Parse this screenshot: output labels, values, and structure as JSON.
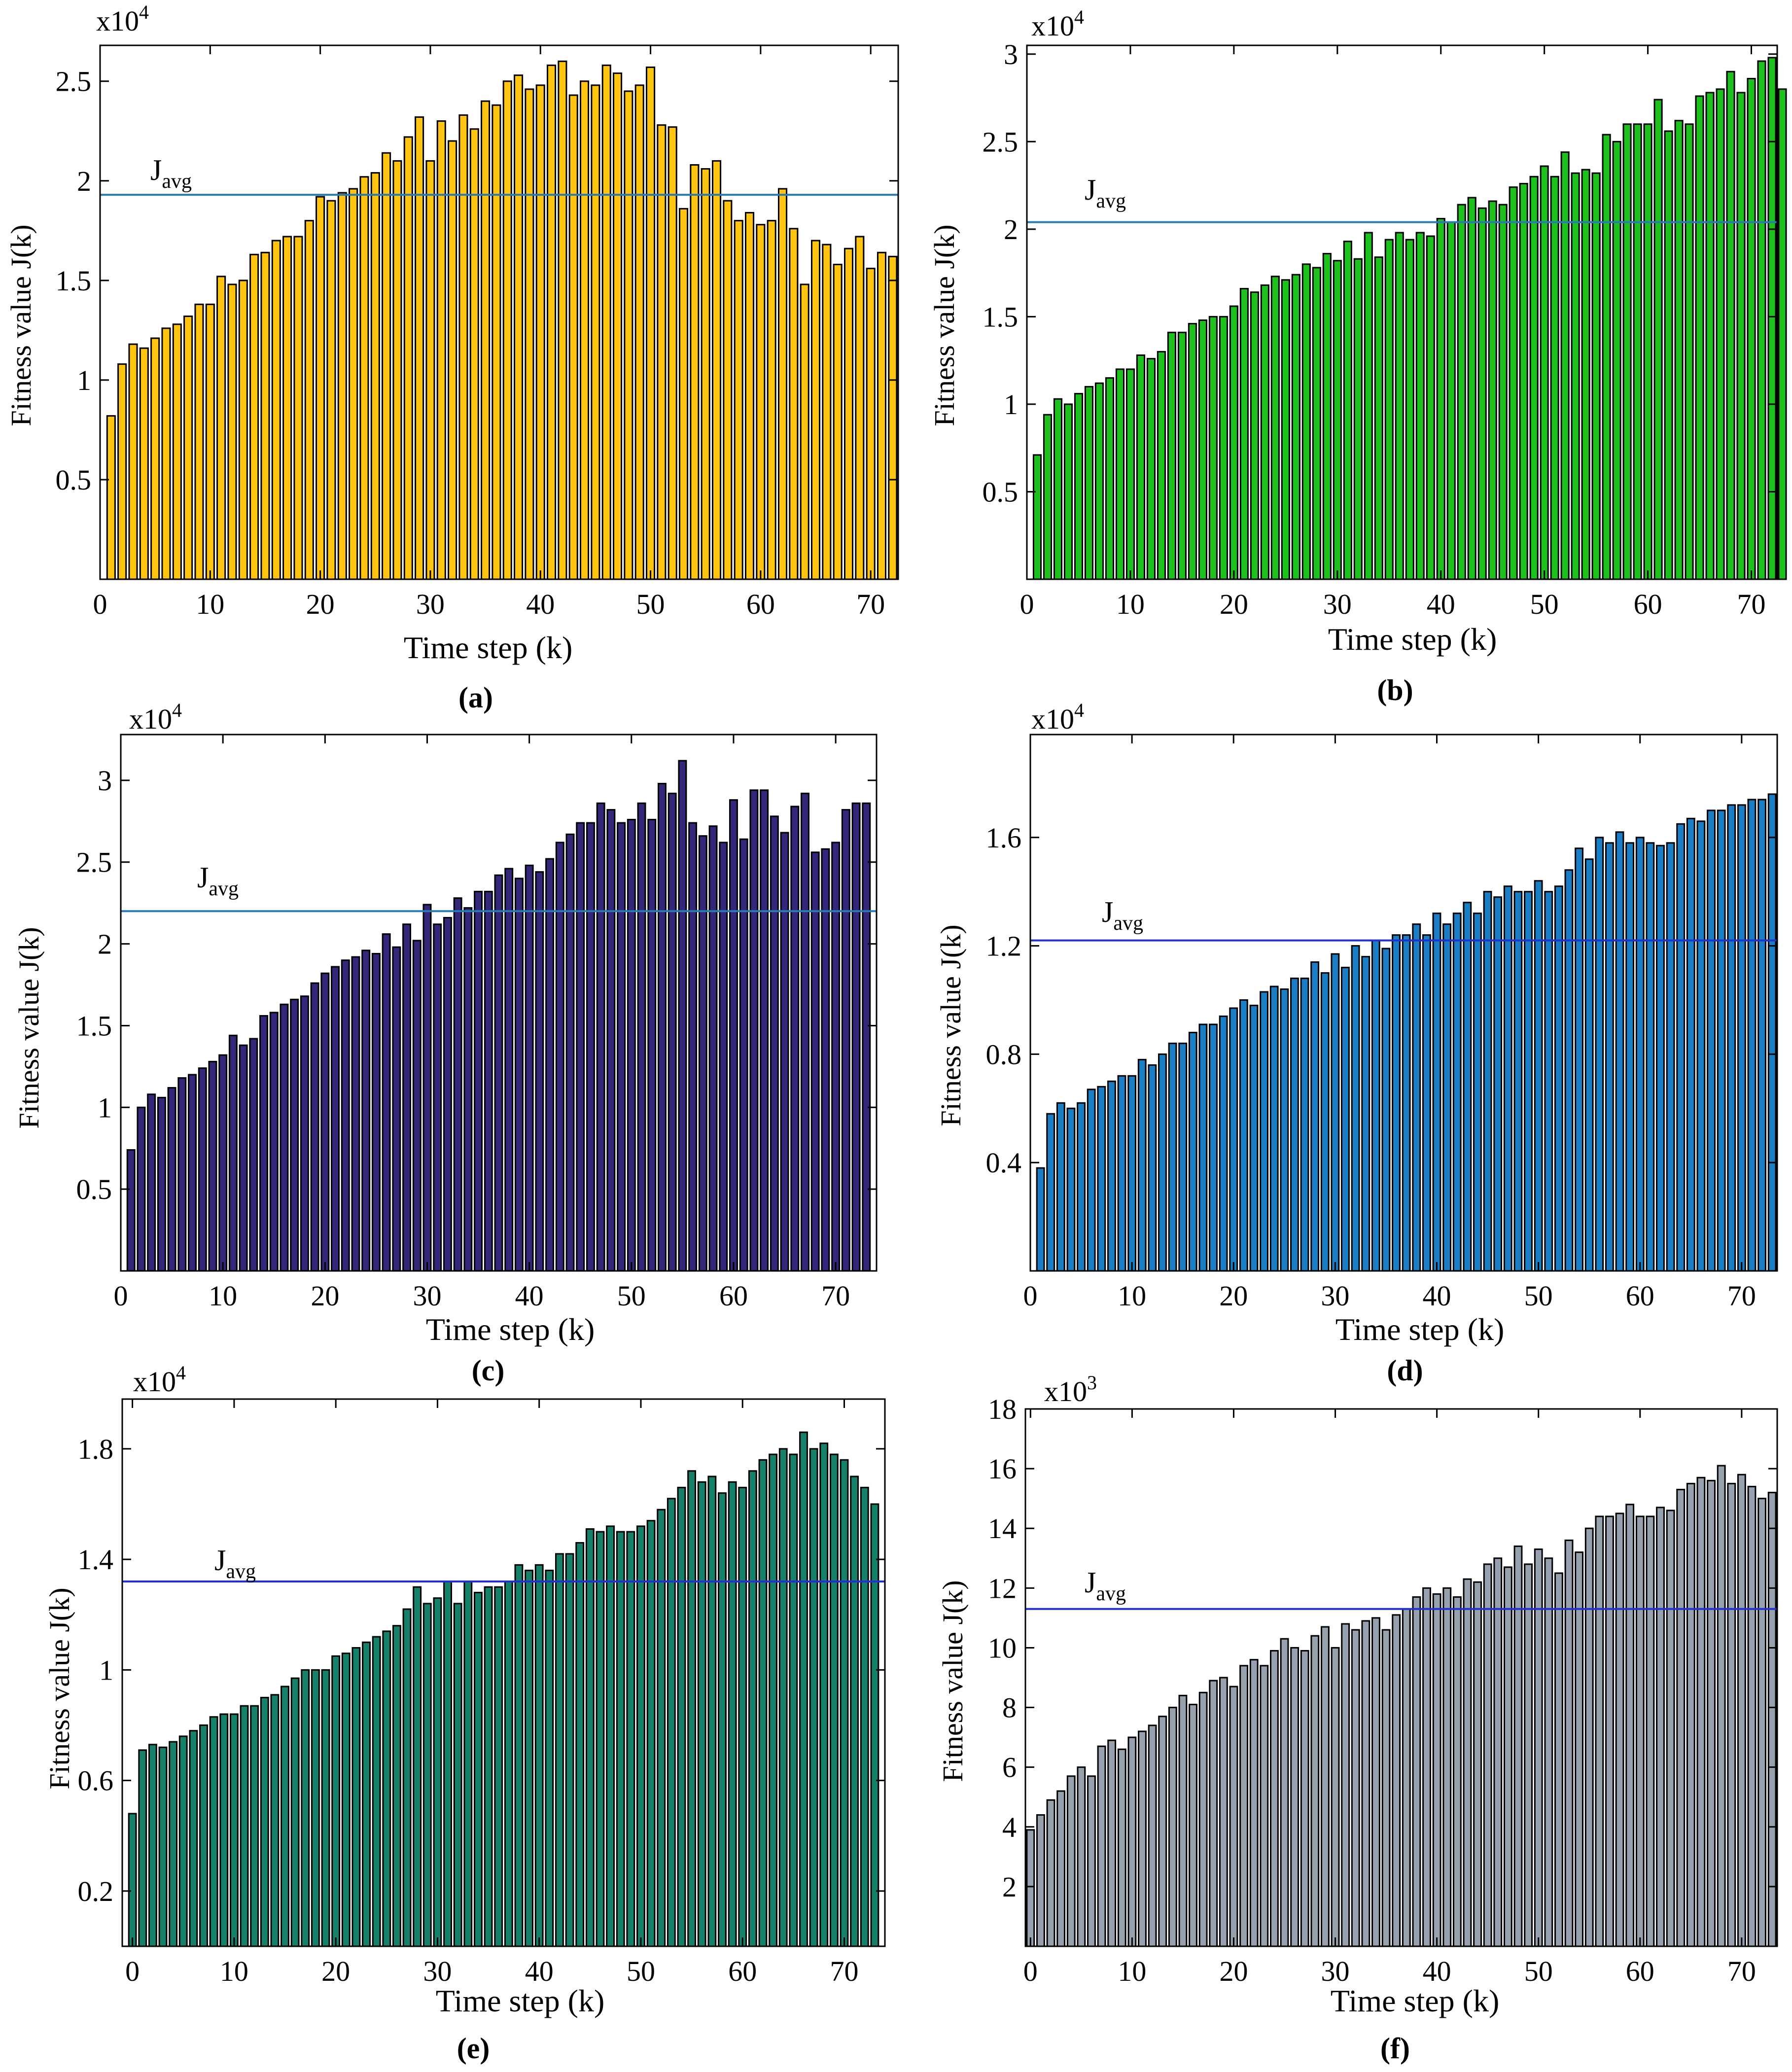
{
  "chart_data": [
    {
      "panel": "a",
      "type": "bar",
      "panel_label": "(a)",
      "title": "",
      "xlabel": "Time step (k)",
      "ylabel": "Fitness value J(k)",
      "multiplier_base": "x10",
      "multiplier_exp": "4",
      "xlim": [
        0,
        72.5
      ],
      "ylim": [
        0,
        2.68
      ],
      "xticks": [
        0,
        10,
        20,
        30,
        40,
        50,
        60,
        70
      ],
      "yticks": [
        0.5,
        1,
        1.5,
        2,
        2.5
      ],
      "ytick_labels": [
        "0.5",
        "1",
        "1.5",
        "2",
        "2.5"
      ],
      "javg": 1.93,
      "javg_label": "J",
      "javg_sub": "avg",
      "bar_color": "#ffc312",
      "line_color": "#2a7ab5",
      "x": [
        1,
        2,
        3,
        4,
        5,
        6,
        7,
        8,
        9,
        10,
        11,
        12,
        13,
        14,
        15,
        16,
        17,
        18,
        19,
        20,
        21,
        22,
        23,
        24,
        25,
        26,
        27,
        28,
        29,
        30,
        31,
        32,
        33,
        34,
        35,
        36,
        37,
        38,
        39,
        40,
        41,
        42,
        43,
        44,
        45,
        46,
        47,
        48,
        49,
        50,
        51,
        52,
        53,
        54,
        55,
        56,
        57,
        58,
        59,
        60,
        61,
        62,
        63,
        64,
        65,
        66,
        67,
        68,
        69,
        70,
        71,
        72
      ],
      "values": [
        0.82,
        1.08,
        1.18,
        1.16,
        1.21,
        1.26,
        1.28,
        1.32,
        1.38,
        1.38,
        1.52,
        1.48,
        1.5,
        1.63,
        1.64,
        1.7,
        1.72,
        1.72,
        1.8,
        1.92,
        1.9,
        1.94,
        1.96,
        2.02,
        2.04,
        2.14,
        2.1,
        2.22,
        2.32,
        2.1,
        2.3,
        2.2,
        2.33,
        2.26,
        2.4,
        2.38,
        2.5,
        2.53,
        2.46,
        2.48,
        2.58,
        2.6,
        2.43,
        2.5,
        2.48,
        2.58,
        2.54,
        2.45,
        2.48,
        2.57,
        2.28,
        2.27,
        1.86,
        2.08,
        2.06,
        2.1,
        1.9,
        1.8,
        1.84,
        1.78,
        1.8,
        1.96,
        1.76,
        1.48,
        1.7,
        1.68,
        1.58,
        1.66,
        1.72,
        1.56,
        1.64,
        1.62
      ]
    },
    {
      "panel": "b",
      "type": "bar",
      "panel_label": "(b)",
      "title": "",
      "xlabel": "Time step (k)",
      "ylabel": "Fitness value J(k)",
      "multiplier_base": "x10",
      "multiplier_exp": "4",
      "xlim": [
        0,
        72.5
      ],
      "ylim": [
        0,
        3.05
      ],
      "xticks": [
        0,
        10,
        20,
        30,
        40,
        50,
        60,
        70
      ],
      "yticks": [
        0.5,
        1,
        1.5,
        2,
        2.5,
        3
      ],
      "ytick_labels": [
        "0.5",
        "1",
        "1.5",
        "2",
        "2.5",
        "3"
      ],
      "javg": 2.04,
      "javg_label": "J",
      "javg_sub": "avg",
      "bar_color": "#1ec01e",
      "line_color": "#2a7ab5",
      "x": [
        1,
        2,
        3,
        4,
        5,
        6,
        7,
        8,
        9,
        10,
        11,
        12,
        13,
        14,
        15,
        16,
        17,
        18,
        19,
        20,
        21,
        22,
        23,
        24,
        25,
        26,
        27,
        28,
        29,
        30,
        31,
        32,
        33,
        34,
        35,
        36,
        37,
        38,
        39,
        40,
        41,
        42,
        43,
        44,
        45,
        46,
        47,
        48,
        49,
        50,
        51,
        52,
        53,
        54,
        55,
        56,
        57,
        58,
        59,
        60,
        61,
        62,
        63,
        64,
        65,
        66,
        67,
        68,
        69,
        70,
        71,
        72,
        73
      ],
      "values": [
        0.71,
        0.94,
        1.03,
        1.0,
        1.06,
        1.1,
        1.12,
        1.15,
        1.2,
        1.2,
        1.28,
        1.26,
        1.3,
        1.41,
        1.41,
        1.46,
        1.48,
        1.5,
        1.5,
        1.56,
        1.66,
        1.64,
        1.68,
        1.73,
        1.71,
        1.74,
        1.8,
        1.78,
        1.86,
        1.82,
        1.93,
        1.83,
        1.98,
        1.84,
        1.94,
        1.98,
        1.94,
        1.98,
        1.96,
        2.06,
        2.04,
        2.14,
        2.18,
        2.12,
        2.16,
        2.14,
        2.24,
        2.26,
        2.3,
        2.36,
        2.3,
        2.44,
        2.32,
        2.34,
        2.32,
        2.54,
        2.5,
        2.6,
        2.6,
        2.6,
        2.74,
        2.56,
        2.62,
        2.6,
        2.76,
        2.78,
        2.8,
        2.9,
        2.78,
        2.86,
        2.96,
        2.98,
        2.8
      ]
    },
    {
      "panel": "c",
      "type": "bar",
      "panel_label": "(c)",
      "title": "",
      "xlabel": "Time step (k)",
      "ylabel": "Fitness value J(k)",
      "multiplier_base": "x10",
      "multiplier_exp": "4",
      "xlim": [
        0,
        74
      ],
      "ylim": [
        0,
        3.28
      ],
      "xticks": [
        0,
        10,
        20,
        30,
        40,
        50,
        60,
        70
      ],
      "yticks": [
        0.5,
        1,
        1.5,
        2,
        2.5,
        3
      ],
      "ytick_labels": [
        "0.5",
        "1",
        "1.5",
        "2",
        "2.5",
        "3"
      ],
      "javg": 2.2,
      "javg_label": "J",
      "javg_sub": "avg",
      "bar_color": "#33277a",
      "line_color": "#2a7ab5",
      "x": [
        1,
        2,
        3,
        4,
        5,
        6,
        7,
        8,
        9,
        10,
        11,
        12,
        13,
        14,
        15,
        16,
        17,
        18,
        19,
        20,
        21,
        22,
        23,
        24,
        25,
        26,
        27,
        28,
        29,
        30,
        31,
        32,
        33,
        34,
        35,
        36,
        37,
        38,
        39,
        40,
        41,
        42,
        43,
        44,
        45,
        46,
        47,
        48,
        49,
        50,
        51,
        52,
        53,
        54,
        55,
        56,
        57,
        58,
        59,
        60,
        61,
        62,
        63,
        64,
        65,
        66,
        67,
        68,
        69,
        70,
        71,
        72,
        73
      ],
      "values": [
        0.74,
        1.0,
        1.08,
        1.06,
        1.12,
        1.18,
        1.2,
        1.24,
        1.28,
        1.32,
        1.44,
        1.38,
        1.42,
        1.56,
        1.58,
        1.63,
        1.66,
        1.68,
        1.76,
        1.82,
        1.86,
        1.9,
        1.92,
        1.96,
        1.94,
        2.06,
        1.98,
        2.12,
        2.02,
        2.24,
        2.12,
        2.16,
        2.28,
        2.22,
        2.32,
        2.32,
        2.42,
        2.46,
        2.4,
        2.48,
        2.44,
        2.52,
        2.62,
        2.67,
        2.74,
        2.74,
        2.86,
        2.82,
        2.74,
        2.76,
        2.86,
        2.76,
        2.98,
        2.92,
        3.12,
        2.74,
        2.66,
        2.72,
        2.62,
        2.88,
        2.64,
        2.94,
        2.94,
        2.78,
        2.68,
        2.84,
        2.92,
        2.56,
        2.58,
        2.62,
        2.82,
        2.86,
        2.86
      ]
    },
    {
      "panel": "d",
      "type": "bar",
      "panel_label": "(d)",
      "title": "",
      "xlabel": "Time step (k)",
      "ylabel": "Fitness value J(k)",
      "multiplier_base": "x10",
      "multiplier_exp": "4",
      "xlim": [
        0,
        73.5
      ],
      "ylim": [
        0,
        1.98
      ],
      "xticks": [
        0,
        10,
        20,
        30,
        40,
        50,
        60,
        70
      ],
      "yticks": [
        0.4,
        0.8,
        1.2,
        1.6
      ],
      "ytick_labels": [
        "0.4",
        "0.8",
        "1.2",
        "1.6"
      ],
      "javg": 1.22,
      "javg_label": "J",
      "javg_sub": "avg",
      "bar_color": "#1b7ec4",
      "line_color": "#2233cc",
      "x": [
        1,
        2,
        3,
        4,
        5,
        6,
        7,
        8,
        9,
        10,
        11,
        12,
        13,
        14,
        15,
        16,
        17,
        18,
        19,
        20,
        21,
        22,
        23,
        24,
        25,
        26,
        27,
        28,
        29,
        30,
        31,
        32,
        33,
        34,
        35,
        36,
        37,
        38,
        39,
        40,
        41,
        42,
        43,
        44,
        45,
        46,
        47,
        48,
        49,
        50,
        51,
        52,
        53,
        54,
        55,
        56,
        57,
        58,
        59,
        60,
        61,
        62,
        63,
        64,
        65,
        66,
        67,
        68,
        69,
        70,
        71,
        72,
        73
      ],
      "values": [
        0.38,
        0.58,
        0.62,
        0.6,
        0.62,
        0.67,
        0.68,
        0.7,
        0.72,
        0.72,
        0.78,
        0.76,
        0.8,
        0.84,
        0.84,
        0.88,
        0.91,
        0.91,
        0.94,
        0.97,
        1.0,
        0.98,
        1.03,
        1.05,
        1.04,
        1.08,
        1.08,
        1.14,
        1.1,
        1.17,
        1.12,
        1.2,
        1.16,
        1.22,
        1.19,
        1.24,
        1.24,
        1.28,
        1.24,
        1.32,
        1.28,
        1.32,
        1.36,
        1.32,
        1.4,
        1.38,
        1.42,
        1.4,
        1.4,
        1.44,
        1.4,
        1.42,
        1.48,
        1.56,
        1.52,
        1.6,
        1.58,
        1.62,
        1.58,
        1.6,
        1.58,
        1.57,
        1.58,
        1.65,
        1.67,
        1.66,
        1.7,
        1.7,
        1.72,
        1.72,
        1.74,
        1.74,
        1.76
      ]
    },
    {
      "panel": "e",
      "type": "bar",
      "panel_label": "(e)",
      "title": "",
      "xlabel": "Time step (k)",
      "ylabel": "Fitness value J(k)",
      "multiplier_base": "x10",
      "multiplier_exp": "4",
      "xlim": [
        -1,
        74
      ],
      "ylim": [
        0,
        1.98
      ],
      "xticks": [
        0,
        10,
        20,
        30,
        40,
        50,
        60,
        70
      ],
      "yticks": [
        0.2,
        0.6,
        1,
        1.4,
        1.8
      ],
      "ytick_labels": [
        "0.2",
        "0.6",
        "1",
        "1.4",
        "1.8"
      ],
      "javg": 1.32,
      "javg_label": "J",
      "javg_sub": "avg",
      "bar_color": "#17806a",
      "line_color": "#2233cc",
      "x": [
        0,
        1,
        2,
        3,
        4,
        5,
        6,
        7,
        8,
        9,
        10,
        11,
        12,
        13,
        14,
        15,
        16,
        17,
        18,
        19,
        20,
        21,
        22,
        23,
        24,
        25,
        26,
        27,
        28,
        29,
        30,
        31,
        32,
        33,
        34,
        35,
        36,
        37,
        38,
        39,
        40,
        41,
        42,
        43,
        44,
        45,
        46,
        47,
        48,
        49,
        50,
        51,
        52,
        53,
        54,
        55,
        56,
        57,
        58,
        59,
        60,
        61,
        62,
        63,
        64,
        65,
        66,
        67,
        68,
        69,
        70,
        71,
        72,
        73
      ],
      "values": [
        0.48,
        0.71,
        0.73,
        0.72,
        0.74,
        0.76,
        0.78,
        0.8,
        0.83,
        0.84,
        0.84,
        0.87,
        0.87,
        0.9,
        0.91,
        0.94,
        0.97,
        1.0,
        1.0,
        1.0,
        1.05,
        1.06,
        1.08,
        1.1,
        1.12,
        1.14,
        1.16,
        1.22,
        1.3,
        1.24,
        1.26,
        1.32,
        1.24,
        1.32,
        1.28,
        1.3,
        1.3,
        1.32,
        1.38,
        1.36,
        1.38,
        1.36,
        1.42,
        1.42,
        1.46,
        1.51,
        1.5,
        1.52,
        1.5,
        1.5,
        1.52,
        1.54,
        1.58,
        1.62,
        1.66,
        1.72,
        1.68,
        1.7,
        1.64,
        1.68,
        1.66,
        1.72,
        1.76,
        1.78,
        1.8,
        1.78,
        1.86,
        1.8,
        1.82,
        1.78,
        1.76,
        1.7,
        1.66,
        1.6
      ]
    },
    {
      "panel": "f",
      "type": "bar",
      "panel_label": "(f)",
      "title": "",
      "xlabel": "Time step (k)",
      "ylabel": "Fitness value J(k)",
      "multiplier_base": "x10",
      "multiplier_exp": "3",
      "xlim": [
        -0.5,
        73.5
      ],
      "ylim": [
        0,
        18
      ],
      "xticks": [
        0,
        10,
        20,
        30,
        40,
        50,
        60,
        70
      ],
      "yticks": [
        2,
        4,
        6,
        8,
        10,
        12,
        14,
        16,
        18
      ],
      "ytick_labels": [
        "2",
        "4",
        "6",
        "8",
        "10",
        "12",
        "14",
        "16",
        "18"
      ],
      "javg": 11.3,
      "javg_label": "J",
      "javg_sub": "avg",
      "bar_color": "#97a0ad",
      "line_color": "#2233cc",
      "x": [
        0,
        1,
        2,
        3,
        4,
        5,
        6,
        7,
        8,
        9,
        10,
        11,
        12,
        13,
        14,
        15,
        16,
        17,
        18,
        19,
        20,
        21,
        22,
        23,
        24,
        25,
        26,
        27,
        28,
        29,
        30,
        31,
        32,
        33,
        34,
        35,
        36,
        37,
        38,
        39,
        40,
        41,
        42,
        43,
        44,
        45,
        46,
        47,
        48,
        49,
        50,
        51,
        52,
        53,
        54,
        55,
        56,
        57,
        58,
        59,
        60,
        61,
        62,
        63,
        64,
        65,
        66,
        67,
        68,
        69,
        70,
        71,
        72,
        73
      ],
      "values": [
        3.9,
        4.4,
        4.9,
        5.2,
        5.7,
        6.0,
        5.7,
        6.7,
        6.9,
        6.6,
        7.0,
        7.2,
        7.4,
        7.7,
        8.0,
        8.4,
        8.1,
        8.5,
        8.9,
        9.0,
        8.7,
        9.4,
        9.6,
        9.4,
        9.9,
        10.3,
        10.0,
        9.9,
        10.4,
        10.7,
        10.0,
        10.8,
        10.6,
        10.9,
        11.0,
        10.6,
        11.1,
        11.3,
        11.7,
        12.0,
        11.8,
        12.0,
        11.7,
        12.3,
        12.2,
        12.8,
        13.0,
        12.7,
        13.4,
        12.8,
        13.3,
        13.0,
        12.5,
        13.6,
        13.2,
        14.0,
        14.4,
        14.4,
        14.5,
        14.8,
        14.4,
        14.4,
        14.7,
        14.6,
        15.3,
        15.5,
        15.7,
        15.6,
        16.1,
        15.5,
        15.8,
        15.4,
        15.0,
        15.2
      ]
    }
  ]
}
